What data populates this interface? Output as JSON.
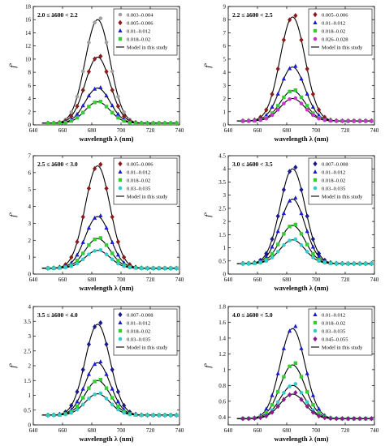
{
  "figure": {
    "background": "#ffffff"
  },
  "chart_data": [
    {
      "type": "line",
      "title": "",
      "annotation": "2.0 ≤ ā600 < 2.2",
      "xlabel": "wavelength λ (nm)",
      "ylabel": "f'",
      "xlim": [
        640,
        740
      ],
      "ylim": [
        0,
        18
      ],
      "xticks": [
        640,
        660,
        680,
        700,
        720,
        740
      ],
      "yticks": [
        0,
        2,
        4,
        6,
        8,
        10,
        12,
        14,
        16,
        18
      ],
      "grid": false,
      "legend_position": "top-right",
      "model_label": "Model in this study",
      "x": [
        650,
        654,
        658,
        662,
        666,
        670,
        674,
        678,
        682,
        686,
        690,
        694,
        698,
        702,
        706,
        710,
        714,
        718,
        722,
        726,
        730,
        734,
        738
      ],
      "series": [
        {
          "name": "0.003–0.004",
          "color": "#a0a0a0",
          "marker": "circle",
          "peak": 16.0,
          "base": 0.25,
          "width": 8.5
        },
        {
          "name": "0.005–0.006",
          "color": "#8b1a1a",
          "marker": "diamond",
          "peak": 10.3,
          "base": 0.25,
          "width": 8.5
        },
        {
          "name": "0.01–0.012",
          "color": "#1a1ad6",
          "marker": "triangle",
          "peak": 5.6,
          "base": 0.25,
          "width": 8.5
        },
        {
          "name": "0.018–0.02",
          "color": "#33cc33",
          "marker": "square",
          "peak": 3.5,
          "base": 0.25,
          "width": 8.5
        }
      ]
    },
    {
      "type": "line",
      "title": "",
      "annotation": "2.2 ≤ ā600 < 2.5",
      "xlabel": "wavelength λ (nm)",
      "ylabel": "f'",
      "xlim": [
        640,
        740
      ],
      "ylim": [
        0,
        9
      ],
      "xticks": [
        640,
        660,
        680,
        700,
        720,
        740
      ],
      "yticks": [
        0,
        1,
        2,
        3,
        4,
        5,
        6,
        7,
        8,
        9
      ],
      "grid": false,
      "legend_position": "top-right",
      "model_label": "Model in this study",
      "x": [
        650,
        654,
        658,
        662,
        666,
        670,
        674,
        678,
        682,
        686,
        690,
        694,
        698,
        702,
        706,
        710,
        714,
        718,
        722,
        726,
        730,
        734,
        738
      ],
      "series": [
        {
          "name": "0.005–0.006",
          "color": "#8b1a1a",
          "marker": "diamond",
          "peak": 8.2,
          "base": 0.3,
          "width": 8.5
        },
        {
          "name": "0.01–0.012",
          "color": "#1a1ad6",
          "marker": "triangle",
          "peak": 4.4,
          "base": 0.3,
          "width": 8.5
        },
        {
          "name": "0.018–0.02",
          "color": "#33cc33",
          "marker": "square",
          "peak": 2.6,
          "base": 0.3,
          "width": 8.5
        },
        {
          "name": "0.026–0.028",
          "color": "#cc33cc",
          "marker": "circle",
          "peak": 2.0,
          "base": 0.3,
          "width": 8.5
        }
      ]
    },
    {
      "type": "line",
      "title": "",
      "annotation": "2.5 ≤ ā600 < 3.0",
      "xlabel": "wavelength λ (nm)",
      "ylabel": "f'",
      "xlim": [
        640,
        740
      ],
      "ylim": [
        0,
        7
      ],
      "xticks": [
        640,
        660,
        680,
        700,
        720,
        740
      ],
      "yticks": [
        0,
        1,
        2,
        3,
        4,
        5,
        6,
        7
      ],
      "grid": false,
      "legend_position": "top-right",
      "model_label": "Model in this study",
      "x": [
        650,
        654,
        658,
        662,
        666,
        670,
        674,
        678,
        682,
        686,
        690,
        694,
        698,
        702,
        706,
        710,
        714,
        718,
        722,
        726,
        730,
        734,
        738
      ],
      "series": [
        {
          "name": "0.005–0.006",
          "color": "#8b1a1a",
          "marker": "diamond",
          "peak": 6.4,
          "base": 0.35,
          "width": 8.5
        },
        {
          "name": "0.01–0.012",
          "color": "#1a1ad6",
          "marker": "triangle",
          "peak": 3.4,
          "base": 0.35,
          "width": 8.5
        },
        {
          "name": "0.018–0.02",
          "color": "#33cc33",
          "marker": "square",
          "peak": 2.1,
          "base": 0.35,
          "width": 8.5
        },
        {
          "name": "0.03–0.035",
          "color": "#33cccc",
          "marker": "circle",
          "peak": 1.4,
          "base": 0.35,
          "width": 8.5
        }
      ]
    },
    {
      "type": "line",
      "title": "",
      "annotation": "3.0 ≤ ā600 < 3.5",
      "xlabel": "wavelength λ (nm)",
      "ylabel": "f'",
      "xlim": [
        640,
        740
      ],
      "ylim": [
        0,
        4.5
      ],
      "xticks": [
        640,
        660,
        680,
        700,
        720,
        740
      ],
      "yticks": [
        0,
        0.5,
        1,
        1.5,
        2,
        2.5,
        3,
        3.5,
        4,
        4.5
      ],
      "grid": false,
      "legend_position": "top-right",
      "model_label": "Model in this study",
      "x": [
        650,
        654,
        658,
        662,
        666,
        670,
        674,
        678,
        682,
        686,
        690,
        694,
        698,
        702,
        706,
        710,
        714,
        718,
        722,
        726,
        730,
        734,
        738
      ],
      "series": [
        {
          "name": "0.007–0.008",
          "color": "#1a1a8b",
          "marker": "diamond",
          "peak": 4.0,
          "base": 0.4,
          "width": 8.5
        },
        {
          "name": "0.01–0.012",
          "color": "#1a1ad6",
          "marker": "triangle",
          "peak": 2.85,
          "base": 0.4,
          "width": 8.5
        },
        {
          "name": "0.018–0.02",
          "color": "#33cc33",
          "marker": "square",
          "peak": 1.85,
          "base": 0.4,
          "width": 8.5
        },
        {
          "name": "0.03–0.035",
          "color": "#33cccc",
          "marker": "circle",
          "peak": 1.3,
          "base": 0.4,
          "width": 8.5
        }
      ]
    },
    {
      "type": "line",
      "title": "",
      "annotation": "3.5 ≤ ā600 < 4.0",
      "xlabel": "wavelength λ (nm)",
      "ylabel": "f'",
      "xlim": [
        640,
        740
      ],
      "ylim": [
        0,
        4
      ],
      "xticks": [
        640,
        660,
        680,
        700,
        720,
        740
      ],
      "yticks": [
        0,
        0.5,
        1,
        1.5,
        2,
        2.5,
        3,
        3.5,
        4
      ],
      "grid": false,
      "legend_position": "top-right",
      "model_label": "Model in this study",
      "x": [
        650,
        654,
        658,
        662,
        666,
        670,
        674,
        678,
        682,
        686,
        690,
        694,
        698,
        702,
        706,
        710,
        714,
        718,
        722,
        726,
        730,
        734,
        738
      ],
      "series": [
        {
          "name": "0.007–0.008",
          "color": "#1a1a8b",
          "marker": "diamond",
          "peak": 3.4,
          "base": 0.33,
          "width": 8.5
        },
        {
          "name": "0.01–0.012",
          "color": "#1a1ad6",
          "marker": "triangle",
          "peak": 2.1,
          "base": 0.33,
          "width": 8.5
        },
        {
          "name": "0.018–0.02",
          "color": "#33cc33",
          "marker": "square",
          "peak": 1.5,
          "base": 0.33,
          "width": 8.5
        },
        {
          "name": "0.03–0.035",
          "color": "#33cccc",
          "marker": "circle",
          "peak": 1.05,
          "base": 0.33,
          "width": 8.5
        }
      ]
    },
    {
      "type": "line",
      "title": "",
      "annotation": "4.0 ≤ ā600 < 5.0",
      "xlabel": "wavelength λ (nm)",
      "ylabel": "f'",
      "xlim": [
        640,
        740
      ],
      "ylim": [
        0.3,
        1.8
      ],
      "xticks": [
        640,
        660,
        680,
        700,
        720,
        740
      ],
      "yticks": [
        0.4,
        0.6,
        0.8,
        1.0,
        1.2,
        1.4,
        1.6,
        1.8
      ],
      "grid": false,
      "legend_position": "top-right",
      "model_label": "Model in this study",
      "x": [
        650,
        654,
        658,
        662,
        666,
        670,
        674,
        678,
        682,
        686,
        690,
        694,
        698,
        702,
        706,
        710,
        714,
        718,
        722,
        726,
        730,
        734,
        738
      ],
      "series": [
        {
          "name": "0.01–0.012",
          "color": "#1a1ad6",
          "marker": "triangle",
          "peak": 1.52,
          "base": 0.38,
          "width": 8.5
        },
        {
          "name": "0.018–0.02",
          "color": "#33cc33",
          "marker": "square",
          "peak": 1.06,
          "base": 0.38,
          "width": 8.5
        },
        {
          "name": "0.03–0.035",
          "color": "#33cccc",
          "marker": "circle",
          "peak": 0.8,
          "base": 0.38,
          "width": 8.5
        },
        {
          "name": "0.045–0.055",
          "color": "#8b1a8b",
          "marker": "diamond",
          "peak": 0.69,
          "base": 0.38,
          "width": 8.5
        }
      ]
    }
  ]
}
